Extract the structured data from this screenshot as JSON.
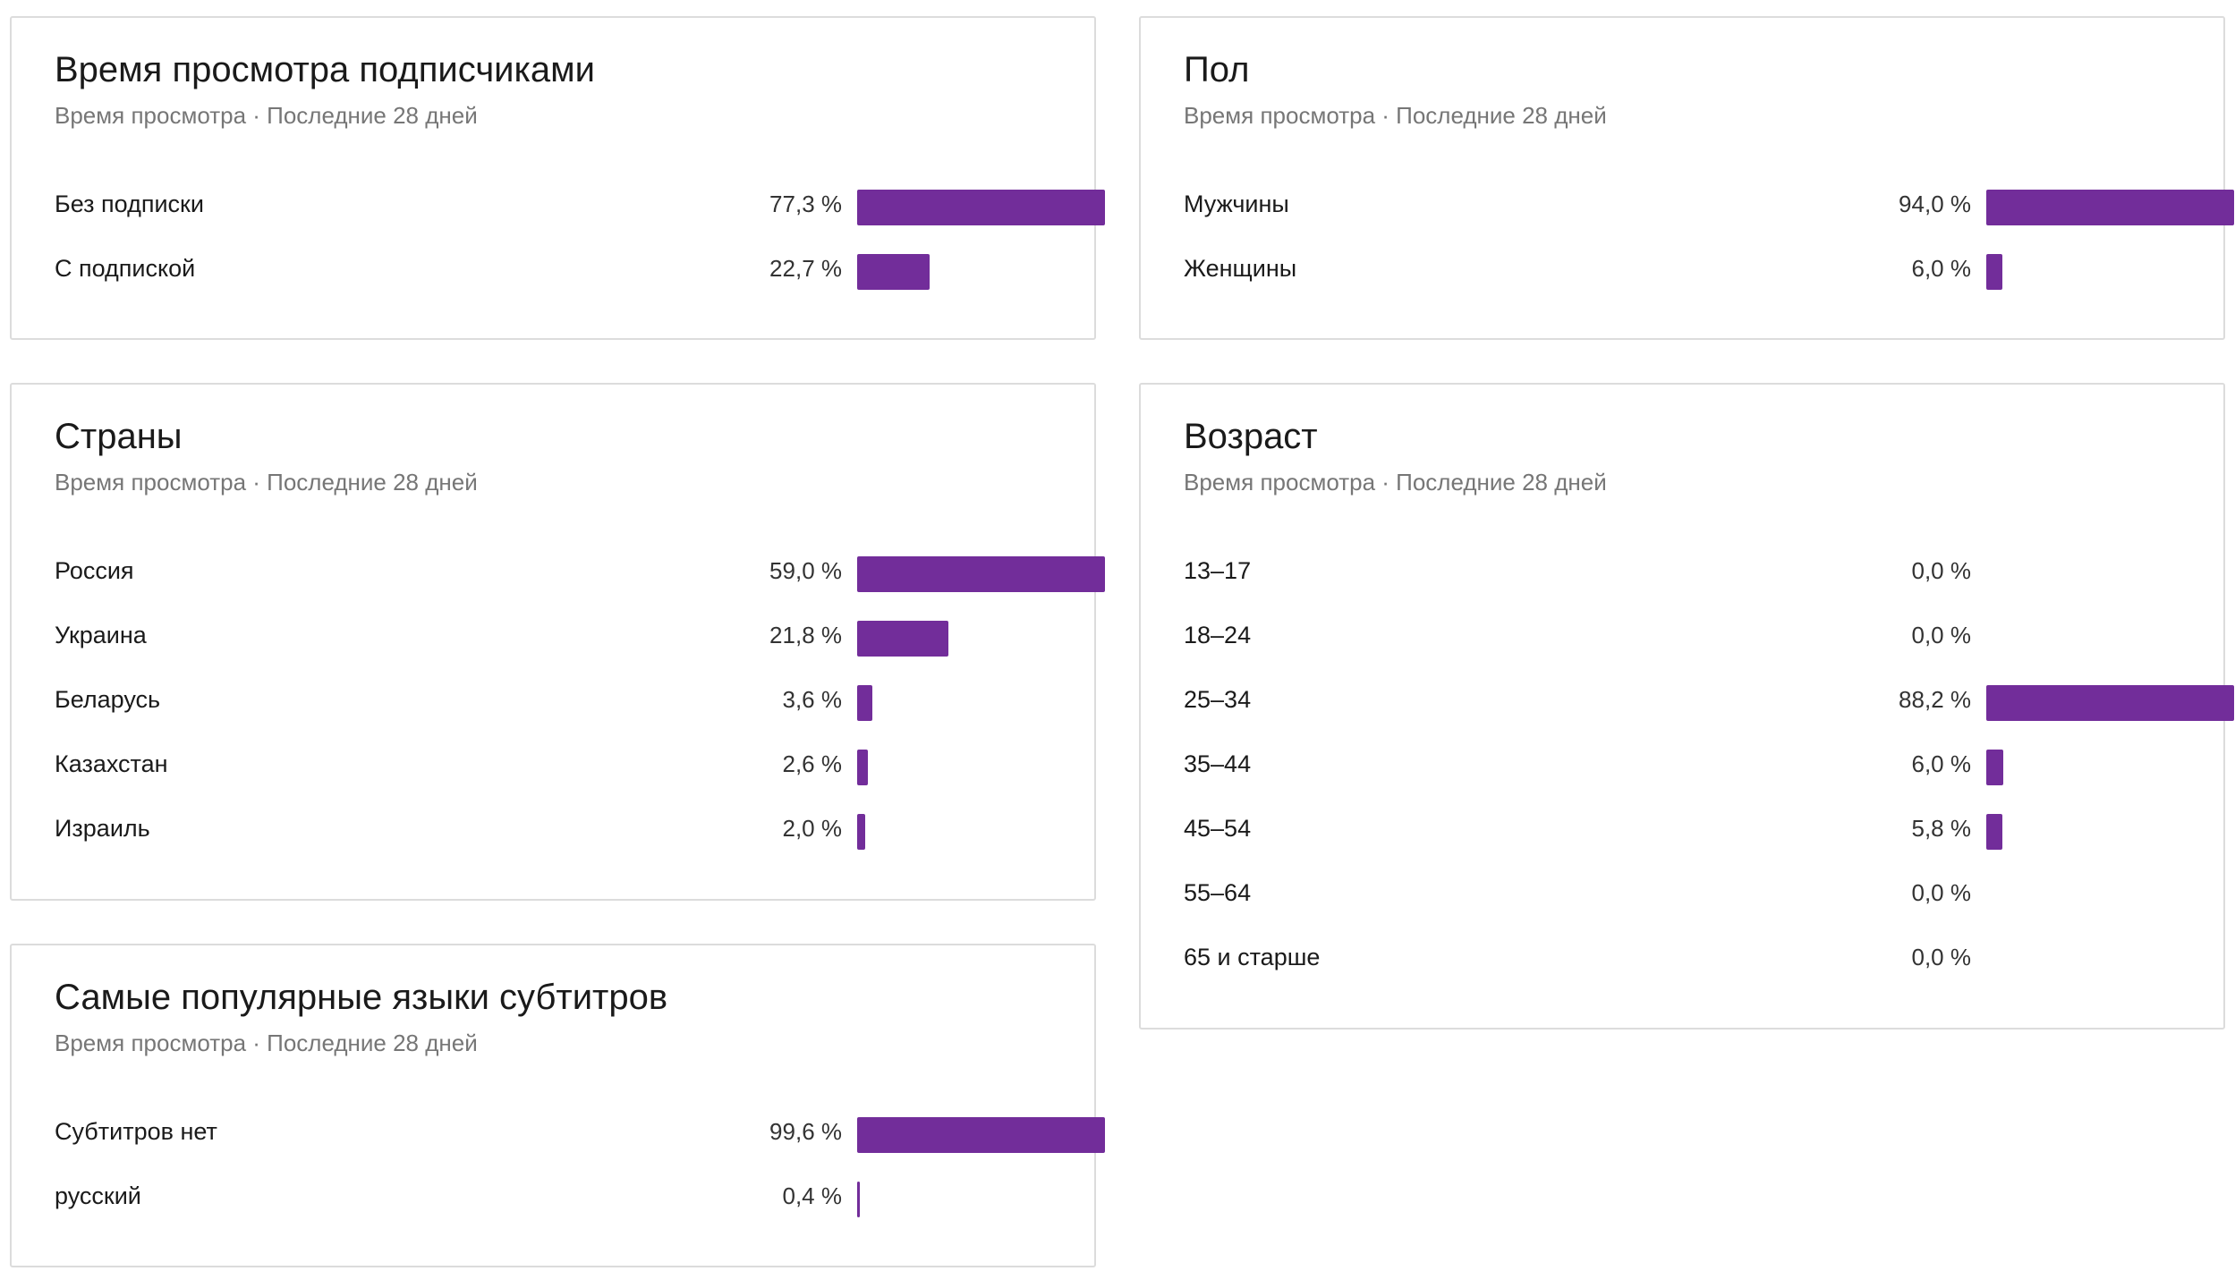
{
  "colors": {
    "bar": "#722d9a",
    "border": "#dcdcdc",
    "subtitle": "#767676"
  },
  "cards": {
    "subscribers": {
      "title": "Время просмотра подписчиками",
      "subtitle": "Время просмотра · Последние 28 дней",
      "rows": [
        {
          "label": "Без подписки",
          "value": "77,3 %"
        },
        {
          "label": "С подпиской",
          "value": "22,7 %"
        }
      ]
    },
    "gender": {
      "title": "Пол",
      "subtitle": "Время просмотра · Последние 28 дней",
      "rows": [
        {
          "label": "Мужчины",
          "value": "94,0 %"
        },
        {
          "label": "Женщины",
          "value": "6,0 %"
        }
      ]
    },
    "countries": {
      "title": "Страны",
      "subtitle": "Время просмотра · Последние 28 дней",
      "rows": [
        {
          "label": "Россия",
          "value": "59,0 %"
        },
        {
          "label": "Украина",
          "value": "21,8 %"
        },
        {
          "label": "Беларусь",
          "value": "3,6 %"
        },
        {
          "label": "Казахстан",
          "value": "2,6 %"
        },
        {
          "label": "Израиль",
          "value": "2,0 %"
        }
      ]
    },
    "age": {
      "title": "Возраст",
      "subtitle": "Время просмотра · Последние 28 дней",
      "rows": [
        {
          "label": "13–17",
          "value": "0,0 %"
        },
        {
          "label": "18–24",
          "value": "0,0 %"
        },
        {
          "label": "25–34",
          "value": "88,2 %"
        },
        {
          "label": "35–44",
          "value": "6,0 %"
        },
        {
          "label": "45–54",
          "value": "5,8 %"
        },
        {
          "label": "55–64",
          "value": "0,0 %"
        },
        {
          "label": "65 и старше",
          "value": "0,0 %"
        }
      ]
    },
    "subtitles": {
      "title": "Самые популярные языки субтитров",
      "subtitle": "Время просмотра · Последние 28 дней",
      "rows": [
        {
          "label": "Субтитров нет",
          "value": "99,6 %"
        },
        {
          "label": "русский",
          "value": "0,4 %"
        }
      ]
    }
  },
  "chart_data": [
    {
      "type": "bar",
      "title": "Время просмотра подписчиками",
      "subtitle": "Время просмотра · Последние 28 дней",
      "categories": [
        "Без подписки",
        "С подпиской"
      ],
      "values": [
        77.3,
        22.7
      ]
    },
    {
      "type": "bar",
      "title": "Пол",
      "subtitle": "Время просмотра · Последние 28 дней",
      "categories": [
        "Мужчины",
        "Женщины"
      ],
      "values": [
        94.0,
        6.0
      ]
    },
    {
      "type": "bar",
      "title": "Страны",
      "subtitle": "Время просмотра · Последние 28 дней",
      "categories": [
        "Россия",
        "Украина",
        "Беларусь",
        "Казахстан",
        "Израиль"
      ],
      "values": [
        59.0,
        21.8,
        3.6,
        2.6,
        2.0
      ]
    },
    {
      "type": "bar",
      "title": "Возраст",
      "subtitle": "Время просмотра · Последние 28 дней",
      "categories": [
        "13–17",
        "18–24",
        "25–34",
        "35–44",
        "45–54",
        "55–64",
        "65 и старше"
      ],
      "values": [
        0.0,
        0.0,
        88.2,
        6.0,
        5.8,
        0.0,
        0.0
      ]
    },
    {
      "type": "bar",
      "title": "Самые популярные языки субтитров",
      "subtitle": "Время просмотра · Последние 28 дней",
      "categories": [
        "Субтитров нет",
        "русский"
      ],
      "values": [
        99.6,
        0.4
      ]
    }
  ]
}
